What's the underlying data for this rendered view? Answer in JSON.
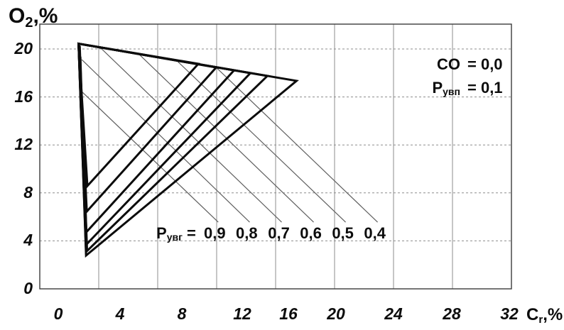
{
  "figure": {
    "background": "#ffffff",
    "ink": "#0c0c0c",
    "grid_color": "#8d8d8d",
    "frame_color": "#3c3c3c",
    "leader_color": "#5f5f5f"
  },
  "y_axis": {
    "title": {
      "main": "O",
      "sub": "2",
      "suffix": ",%"
    },
    "ticks": [
      "20",
      "16",
      "12",
      "8",
      "4",
      "0"
    ]
  },
  "x_axis": {
    "title": {
      "main": "C",
      "sub": "r",
      "suffix": ",%"
    },
    "ticks": [
      "0",
      "4",
      "8",
      "12",
      "16",
      "20",
      "24",
      "28",
      "32"
    ]
  },
  "conditions": {
    "line1": {
      "label": "CO",
      "eq": "= 0,0"
    },
    "line2": {
      "label": "Р",
      "sub": "увп",
      "eq": "= 0,1"
    }
  },
  "family_label": {
    "prefix": "Р",
    "sub": "увг",
    "eq": " = "
  },
  "chart_data": {
    "type": "line",
    "title": "",
    "xlabel": "Cr, %",
    "ylabel": "O2, %",
    "xlim": [
      0,
      32
    ],
    "ylim": [
      0,
      22.1
    ],
    "x_ticks": [
      0,
      4,
      8,
      12,
      16,
      20,
      24,
      28,
      32
    ],
    "y_ticks": [
      0,
      4,
      8,
      12,
      16,
      20
    ],
    "grid": true,
    "legend_position": "none",
    "conditions": {
      "CO": "0,0",
      "P_uvp": "0,1"
    },
    "air_point": [
      2.63,
      20.44
    ],
    "series": [
      {
        "name": "P_uvg = 0,9",
        "p_uvg": 0.9,
        "triangle": [
          [
            2.63,
            20.44
          ],
          [
            10.76,
            18.76
          ],
          [
            3.23,
            8.58
          ]
        ]
      },
      {
        "name": "P_uvg = 0,8",
        "p_uvg": 0.8,
        "triangle": [
          [
            2.63,
            20.44
          ],
          [
            11.97,
            18.46
          ],
          [
            3.19,
            6.45
          ]
        ]
      },
      {
        "name": "P_uvg = 0,7",
        "p_uvg": 0.7,
        "triangle": [
          [
            2.63,
            20.44
          ],
          [
            13.18,
            18.22
          ],
          [
            3.16,
            4.73
          ]
        ]
      },
      {
        "name": "P_uvg = 0,6",
        "p_uvg": 0.6,
        "triangle": [
          [
            2.63,
            20.44
          ],
          [
            14.29,
            17.99
          ],
          [
            3.14,
            3.67
          ]
        ]
      },
      {
        "name": "P_uvg = 0,5",
        "p_uvg": 0.5,
        "triangle": [
          [
            2.63,
            20.44
          ],
          [
            15.44,
            17.75
          ],
          [
            3.14,
            3.08
          ]
        ]
      },
      {
        "name": "P_uvg = 0,4",
        "p_uvg": 0.4,
        "triangle": [
          [
            2.63,
            20.44
          ],
          [
            17.42,
            17.34
          ],
          [
            3.14,
            2.78
          ]
        ]
      }
    ],
    "leader_lines": [
      {
        "to_label": "0,9",
        "from": [
          2.9,
          16.39
        ],
        "to": [
          12.11,
          5.56
        ]
      },
      {
        "to_label": "0,8",
        "from": [
          2.85,
          19.11
        ],
        "to": [
          14.24,
          5.56
        ]
      },
      {
        "to_label": "0,7",
        "from": [
          4.1,
          20.12
        ],
        "to": [
          16.41,
          5.56
        ]
      },
      {
        "to_label": "0,6",
        "from": [
          6.71,
          19.59
        ],
        "to": [
          18.58,
          5.56
        ]
      },
      {
        "to_label": "0,5",
        "from": [
          9.32,
          19.0
        ],
        "to": [
          20.75,
          5.56
        ]
      },
      {
        "to_label": "0,4",
        "from": [
          11.97,
          18.46
        ],
        "to": [
          22.92,
          5.56
        ]
      }
    ],
    "value_labels": {
      "values": [
        "0,9",
        "0,8",
        "0,7",
        "0,6",
        "0,5",
        "0,4"
      ],
      "centers_x": [
        11.87,
        14.04,
        16.22,
        18.39,
        20.56,
        22.73
      ],
      "y": 4.6
    }
  }
}
